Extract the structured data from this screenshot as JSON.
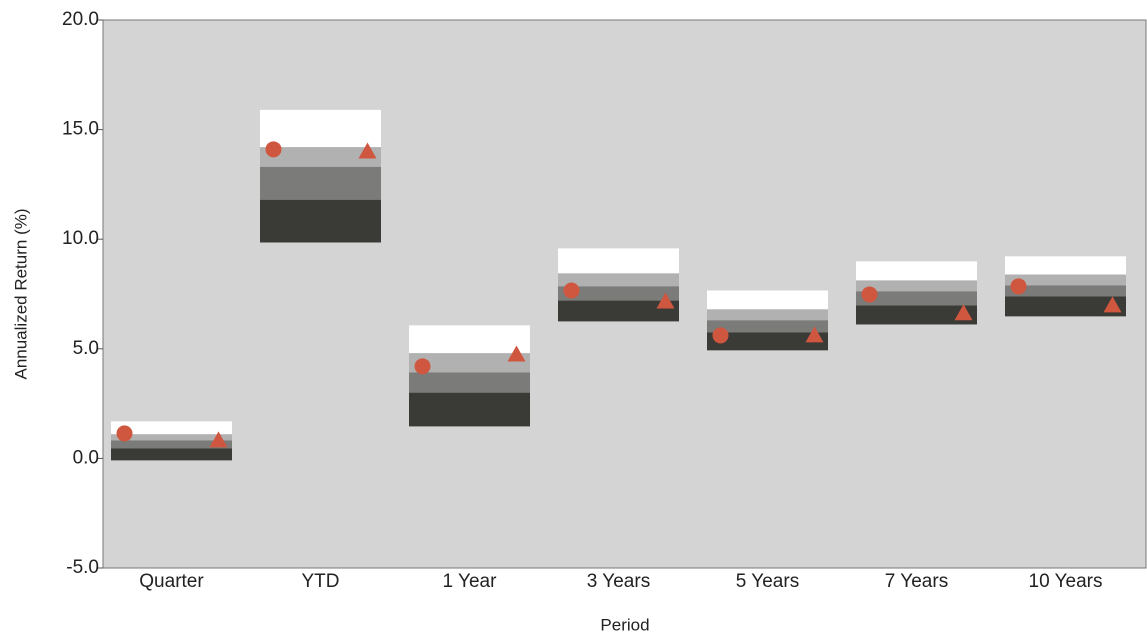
{
  "chart_data": {
    "type": "percentile_range",
    "y_label": "Annualized Return (%)",
    "x_label": "Period",
    "categories": [
      "Quarter",
      "YTD",
      "1 Year",
      "3 Years",
      "5 Years",
      "7 Years",
      "10 Years"
    ],
    "boundaries": [
      [
        1.69,
        1.1,
        0.82,
        0.46,
        -0.09
      ],
      [
        15.9,
        14.2,
        13.3,
        11.8,
        9.85
      ],
      [
        6.07,
        4.8,
        3.92,
        3.0,
        1.46
      ],
      [
        9.58,
        8.44,
        7.85,
        7.2,
        6.25
      ],
      [
        7.66,
        6.8,
        6.3,
        5.75,
        4.93
      ],
      [
        8.99,
        8.12,
        7.62,
        6.98,
        6.11
      ],
      [
        9.22,
        8.39,
        7.89,
        7.39,
        6.48
      ]
    ],
    "band_colors": [
      "#ffffff",
      "#b1b1b1",
      "#7b7b7a",
      "#3a3a36"
    ],
    "markers": [
      {
        "shape": "circle",
        "color": "#d0573f",
        "values": [
          1.14,
          14.1,
          4.2,
          7.66,
          5.61,
          7.48,
          7.85
        ]
      },
      {
        "shape": "triangle",
        "color": "#d0573f",
        "values": [
          0.82,
          14.0,
          4.74,
          7.16,
          5.61,
          6.62,
          6.98
        ]
      }
    ],
    "ylim": [
      -5,
      20
    ],
    "yticks": [
      {
        "value": -5,
        "label": "-5.0"
      },
      {
        "value": 0,
        "label": "0.0"
      },
      {
        "value": 5,
        "label": "5.0"
      },
      {
        "value": 10,
        "label": "10.0"
      },
      {
        "value": 15,
        "label": "15.0"
      },
      {
        "value": 20,
        "label": "20.0"
      }
    ],
    "background": "#d4d4d4"
  }
}
